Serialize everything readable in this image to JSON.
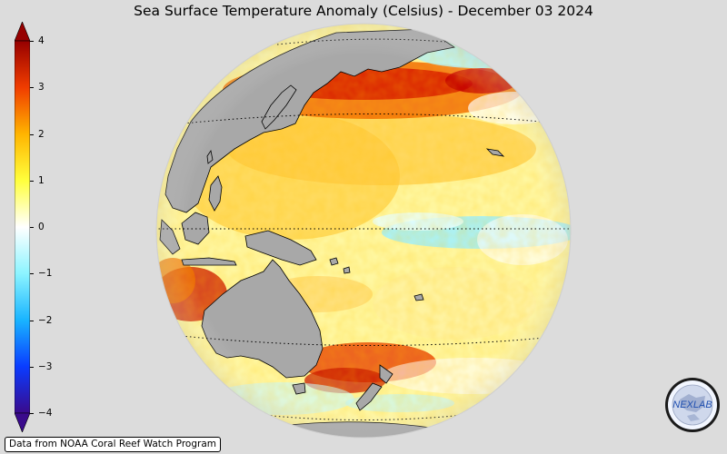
{
  "title": "Sea Surface Temperature Anomaly (Celsius) - December 03 2024",
  "colorbar": {
    "ticks": [
      "4",
      "3",
      "2",
      "1",
      "0",
      "−1",
      "−2",
      "−3",
      "−4"
    ],
    "tick_values": [
      4,
      3,
      2,
      1,
      0,
      -1,
      -2,
      -3,
      -4
    ],
    "range": [
      -4,
      4
    ],
    "colors": [
      "#3a0a8c",
      "#0a3cff",
      "#19b4ff",
      "#8cf4ff",
      "#ffffff",
      "#ffff3c",
      "#ffb400",
      "#f03c00",
      "#960000"
    ]
  },
  "map": {
    "projection": "orthographic",
    "background_color": "#dcdcdc",
    "land_color": "#a8a8a8",
    "ocean_base_color": "#fff7a0",
    "graticule_style": "dotted"
  },
  "credit": "Data from NOAA Coral Reef Watch Program",
  "logo": {
    "text": "NEXLAB",
    "icon": "nexlab-logo"
  }
}
